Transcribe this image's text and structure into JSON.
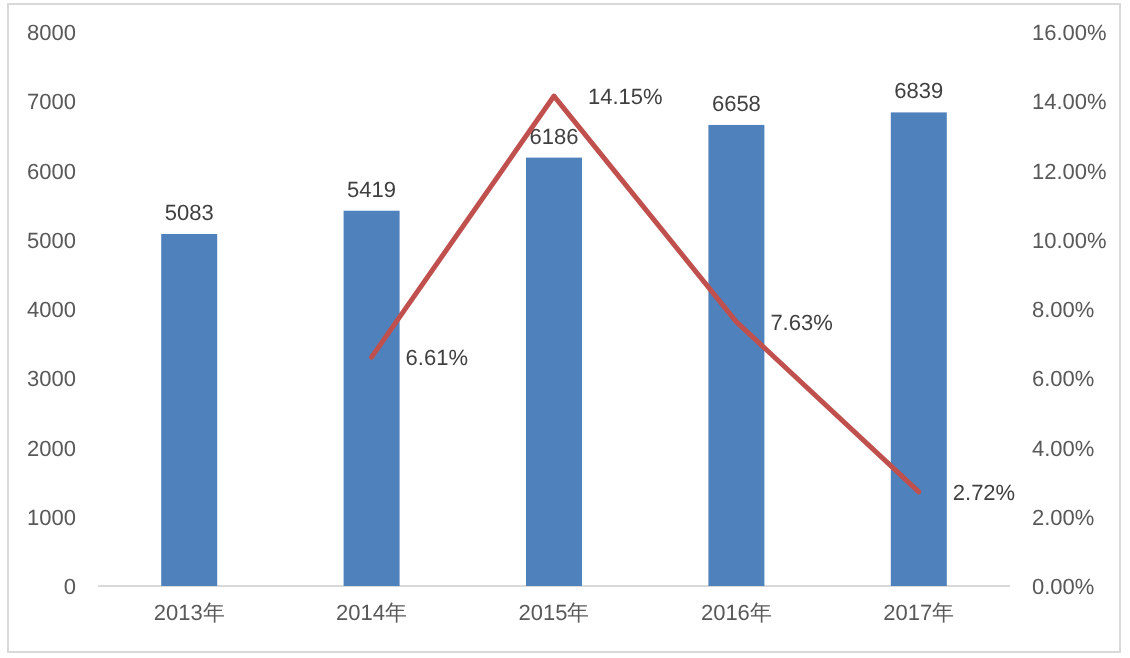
{
  "chart_data": {
    "type": "bar",
    "categories": [
      "2013年",
      "2014年",
      "2015年",
      "2016年",
      "2017年"
    ],
    "series": [
      {
        "color": "#4f81bd",
        "values": [
          5083,
          5419,
          6186,
          6658,
          6839
        ],
        "value_labels": [
          "5083",
          "5419",
          "6186",
          "6658",
          "6839"
        ]
      },
      {
        "type": "line",
        "axis": "y2",
        "color": "#c0504d",
        "values": [
          null,
          6.61,
          14.15,
          7.63,
          2.72
        ],
        "value_labels": [
          null,
          "6.61%",
          "14.15%",
          "7.63%",
          "2.72%"
        ]
      }
    ],
    "ylim": [
      0,
      8000
    ],
    "yticks": [
      0,
      1000,
      2000,
      3000,
      4000,
      5000,
      6000,
      7000,
      8000
    ],
    "y2lim": [
      0,
      16
    ],
    "y2ticks": [
      {
        "value": 0,
        "label": "0.00%"
      },
      {
        "value": 2,
        "label": "2.00%"
      },
      {
        "value": 4,
        "label": "4.00%"
      },
      {
        "value": 6,
        "label": "6.00%"
      },
      {
        "value": 8,
        "label": "8.00%"
      },
      {
        "value": 10,
        "label": "10.00%"
      },
      {
        "value": 12,
        "label": "12.00%"
      },
      {
        "value": 14,
        "label": "14.00%"
      },
      {
        "value": 16,
        "label": "16.00%"
      }
    ],
    "grid": false,
    "marker": "none",
    "line_style": "solid"
  }
}
